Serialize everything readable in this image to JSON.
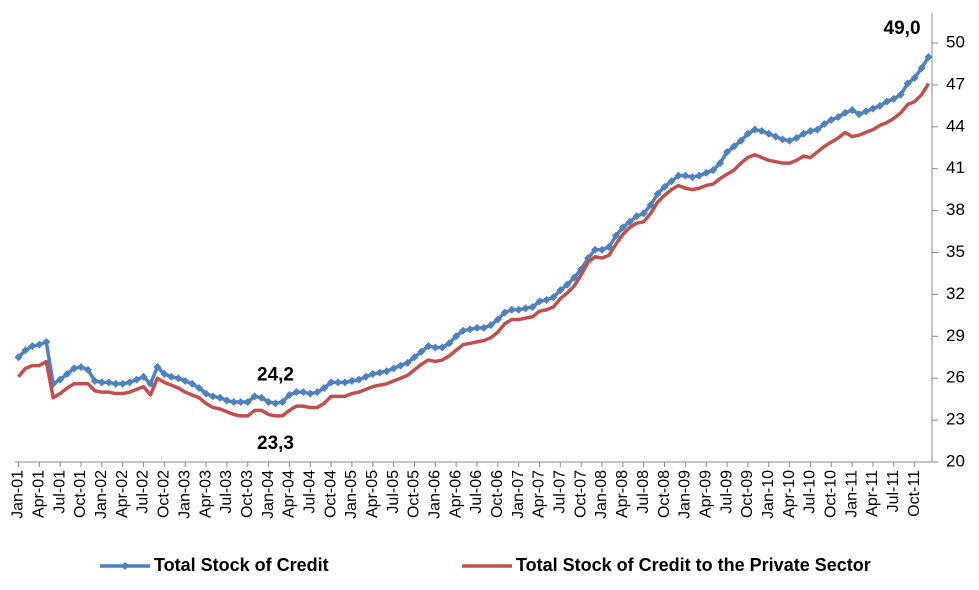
{
  "chart_data": {
    "type": "line",
    "categories": [
      "Jan-01",
      null,
      null,
      "Apr-01",
      null,
      null,
      "Jul-01",
      null,
      null,
      "Oct-01",
      null,
      null,
      "Jan-02",
      null,
      null,
      "Apr-02",
      null,
      null,
      "Jul-02",
      null,
      null,
      "Oct-02",
      null,
      null,
      "Jan-03",
      null,
      null,
      "Apr-03",
      null,
      null,
      "Jul-03",
      null,
      null,
      "Oct-03",
      null,
      null,
      "Jan-04",
      null,
      null,
      "Apr-04",
      null,
      null,
      "Jul-04",
      null,
      null,
      "Oct-04",
      null,
      null,
      "Jan-05",
      null,
      null,
      "Apr-05",
      null,
      null,
      "Jul-05",
      null,
      null,
      "Oct-05",
      null,
      null,
      "Jan-06",
      null,
      null,
      "Apr-06",
      null,
      null,
      "Jul-06",
      null,
      null,
      "Oct-06",
      null,
      null,
      "Jan-07",
      null,
      null,
      "Apr-07",
      null,
      null,
      "Jul-07",
      null,
      null,
      "Oct-07",
      null,
      null,
      "Jan-08",
      null,
      null,
      "Apr-08",
      null,
      null,
      "Jul-08",
      null,
      null,
      "Oct-08",
      null,
      null,
      "Jan-09",
      null,
      null,
      "Apr-09",
      null,
      null,
      "Jul-09",
      null,
      null,
      "Oct-09",
      null,
      null,
      "Jan-10",
      null,
      null,
      "Apr-10",
      null,
      null,
      "Jul-10",
      null,
      null,
      "Oct-10",
      null,
      null,
      "Jan-11",
      null,
      null,
      "Apr-11",
      null,
      null,
      "Jul-11",
      null,
      null,
      "Oct-11",
      null,
      null
    ],
    "series": [
      {
        "name": "Total Stock of Credit",
        "color": "#4f81bd",
        "markers": true,
        "values": [
          27.5,
          28.0,
          28.3,
          28.4,
          28.6,
          25.6,
          25.9,
          26.3,
          26.7,
          26.8,
          26.6,
          25.8,
          25.7,
          25.7,
          25.6,
          25.6,
          25.7,
          25.9,
          26.1,
          25.6,
          26.8,
          26.3,
          26.1,
          26.0,
          25.8,
          25.6,
          25.3,
          24.9,
          24.7,
          24.6,
          24.4,
          24.3,
          24.3,
          24.3,
          24.7,
          24.6,
          24.3,
          24.2,
          24.3,
          24.8,
          25.0,
          25.0,
          24.9,
          25.0,
          25.3,
          25.7,
          25.7,
          25.7,
          25.8,
          25.9,
          26.1,
          26.3,
          26.4,
          26.5,
          26.7,
          26.9,
          27.1,
          27.5,
          27.9,
          28.3,
          28.2,
          28.2,
          28.5,
          29.0,
          29.4,
          29.5,
          29.6,
          29.6,
          29.8,
          30.2,
          30.7,
          30.9,
          30.9,
          31.0,
          31.1,
          31.5,
          31.6,
          31.8,
          32.3,
          32.7,
          33.2,
          33.8,
          34.6,
          35.2,
          35.2,
          35.4,
          36.2,
          36.8,
          37.2,
          37.6,
          37.8,
          38.4,
          39.2,
          39.7,
          40.1,
          40.5,
          40.5,
          40.4,
          40.5,
          40.7,
          40.9,
          41.4,
          42.2,
          42.6,
          43.0,
          43.5,
          43.8,
          43.7,
          43.5,
          43.3,
          43.1,
          43.0,
          43.2,
          43.5,
          43.7,
          43.8,
          44.2,
          44.5,
          44.7,
          45.0,
          45.2,
          44.9,
          45.1,
          45.3,
          45.5,
          45.8,
          46.0,
          46.3,
          47.1,
          47.5,
          48.2,
          49.0
        ],
        "value_labels": [
          null,
          null,
          null,
          null,
          null,
          null,
          null,
          null,
          null,
          null,
          null,
          null,
          null,
          null,
          null,
          null,
          null,
          null,
          null,
          null,
          null,
          null,
          null,
          null,
          null,
          null,
          null,
          null,
          null,
          null,
          null,
          null,
          null,
          null,
          null,
          null,
          null,
          "24,2",
          null,
          null,
          null,
          null,
          null,
          null,
          null,
          null,
          null,
          null,
          null,
          null,
          null,
          null,
          null,
          null,
          null,
          null,
          null,
          null,
          null,
          null,
          null,
          null,
          null,
          null,
          null,
          null,
          null,
          null,
          null,
          null,
          null,
          null,
          null,
          null,
          null,
          null,
          null,
          null,
          null,
          null,
          null,
          null,
          null,
          null,
          null,
          null,
          null,
          null,
          null,
          null,
          null,
          null,
          null,
          null,
          null,
          null,
          null,
          null,
          null,
          null,
          null,
          null,
          null,
          null,
          null,
          null,
          null,
          null,
          null,
          null,
          null,
          null,
          null,
          null,
          null,
          null,
          null,
          null,
          null,
          null,
          null,
          null,
          null,
          null,
          null,
          null,
          null,
          null,
          null,
          null,
          null,
          "49,0"
        ]
      },
      {
        "name": "Total Stock of Credit to the Private Sector",
        "color": "#c0504d",
        "markers": false,
        "values": [
          26.1,
          26.7,
          26.9,
          26.9,
          27.2,
          24.6,
          24.9,
          25.3,
          25.6,
          25.6,
          25.6,
          25.1,
          25.0,
          25.0,
          24.9,
          24.9,
          25.0,
          25.2,
          25.4,
          24.8,
          26.0,
          25.7,
          25.5,
          25.3,
          25.0,
          24.8,
          24.6,
          24.2,
          23.9,
          23.8,
          23.6,
          23.4,
          23.3,
          23.3,
          23.7,
          23.7,
          23.4,
          23.3,
          23.3,
          23.7,
          24.0,
          24.0,
          23.9,
          23.9,
          24.2,
          24.7,
          24.7,
          24.7,
          24.9,
          25.0,
          25.2,
          25.4,
          25.5,
          25.6,
          25.8,
          26.0,
          26.2,
          26.6,
          27.0,
          27.3,
          27.2,
          27.3,
          27.6,
          28.0,
          28.4,
          28.5,
          28.6,
          28.7,
          28.9,
          29.3,
          29.9,
          30.2,
          30.2,
          30.3,
          30.4,
          30.8,
          30.9,
          31.1,
          31.7,
          32.1,
          32.6,
          33.4,
          34.3,
          34.7,
          34.6,
          34.8,
          35.6,
          36.3,
          36.8,
          37.1,
          37.2,
          37.8,
          38.6,
          39.1,
          39.5,
          39.8,
          39.6,
          39.5,
          39.6,
          39.8,
          39.9,
          40.3,
          40.6,
          40.9,
          41.4,
          41.8,
          42.0,
          41.8,
          41.6,
          41.5,
          41.4,
          41.4,
          41.6,
          41.9,
          41.8,
          42.2,
          42.6,
          42.9,
          43.2,
          43.6,
          43.3,
          43.4,
          43.6,
          43.8,
          44.1,
          44.3,
          44.6,
          45.0,
          45.6,
          45.8,
          46.3,
          47.1
        ],
        "value_labels": [
          null,
          null,
          null,
          null,
          null,
          null,
          null,
          null,
          null,
          null,
          null,
          null,
          null,
          null,
          null,
          null,
          null,
          null,
          null,
          null,
          null,
          null,
          null,
          null,
          null,
          null,
          null,
          null,
          null,
          null,
          null,
          null,
          null,
          null,
          null,
          null,
          null,
          "23,3",
          null,
          null,
          null,
          null,
          null,
          null,
          null,
          null,
          null,
          null,
          null,
          null,
          null,
          null,
          null,
          null,
          null,
          null,
          null,
          null,
          null,
          null,
          null,
          null,
          null,
          null,
          null,
          null,
          null,
          null,
          null,
          null,
          null,
          null,
          null,
          null,
          null,
          null,
          null,
          null,
          null,
          null,
          null,
          null,
          null,
          null,
          null,
          null,
          null,
          null,
          null,
          null,
          null,
          null,
          null,
          null,
          null,
          null,
          null,
          null,
          null,
          null,
          null,
          null,
          null,
          null,
          null,
          null,
          null,
          null,
          null,
          null,
          null,
          null,
          null,
          null,
          null,
          null,
          null,
          null,
          null,
          null,
          null,
          null,
          null,
          null,
          null,
          null,
          null,
          null,
          null,
          null,
          null,
          null
        ]
      }
    ],
    "ylim": [
      20,
      50
    ],
    "yticks": [
      20,
      23,
      26,
      29,
      32,
      35,
      38,
      41,
      44,
      47,
      50
    ],
    "y_axis_side": "right",
    "grid": false,
    "legend": "bottom"
  }
}
